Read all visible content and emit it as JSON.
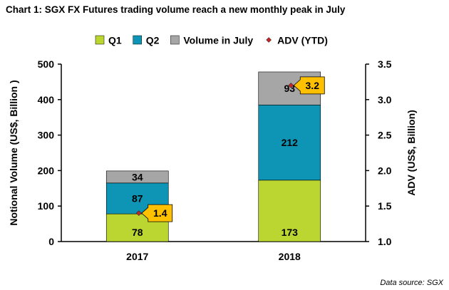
{
  "title": "Chart 1: SGX FX Futures trading volume reach a new monthly peak in July",
  "source": "Data source: SGX",
  "chart_data": {
    "type": "bar",
    "stacked": true,
    "categories": [
      "2017",
      "2018"
    ],
    "series": [
      {
        "name": "Q1",
        "values": [
          78,
          173
        ],
        "color": "#bcd631"
      },
      {
        "name": "Q2",
        "values": [
          87,
          212
        ],
        "color": "#0e94b4"
      },
      {
        "name": "Volume in July",
        "values": [
          34,
          93
        ],
        "color": "#a6a6a6"
      }
    ],
    "secondary_series": {
      "name": "ADV (YTD)",
      "type": "scatter",
      "values": [
        1.4,
        3.2
      ],
      "marker": "diamond",
      "color": "#c0282c",
      "label_bg": "#ffc000"
    },
    "ylabel": "Notional Volume (US$, Billion )",
    "y2label": "ADV (US$, Billion)",
    "ylim": [
      0,
      500
    ],
    "y2lim": [
      1.0,
      3.5
    ],
    "yticks": [
      "0",
      "100",
      "200",
      "300",
      "400",
      "500"
    ],
    "y2ticks": [
      "1.0",
      "1.5",
      "2.0",
      "2.5",
      "3.0",
      "3.5"
    ],
    "legend": "top",
    "grid": false
  }
}
